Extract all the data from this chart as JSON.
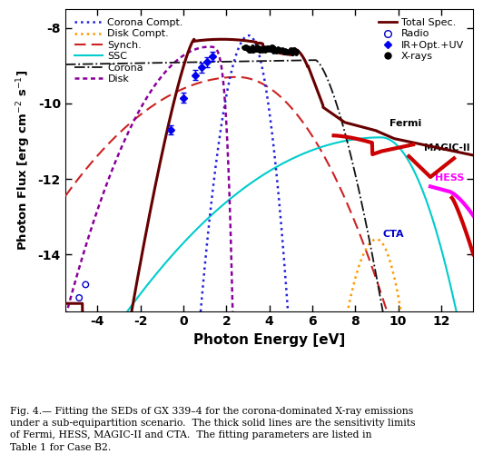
{
  "xlabel": "Photon Energy [eV]",
  "ylabel": "Photon Flux [erg cm$^{-2}$ s$^{-1}$]",
  "xlim": [
    -5.5,
    13.5
  ],
  "ylim": [
    -15.5,
    -7.5
  ],
  "xticks": [
    -4,
    -2,
    0,
    2,
    4,
    6,
    8,
    10,
    12
  ],
  "yticks": [
    -8,
    -10,
    -12,
    -14
  ],
  "caption": "Fig. 4.— Fitting the SEDs of GX 339–4 for the corona-dominated X-ray emissions\nunder a sub-equipartition scenario.  The thick solid lines are the sensitivity limits\nof Fermi, HESS, MAGIC-II and CTA.  The fitting parameters are listed in\nTable 1 for Case B2.",
  "bg_color": "#ffffff",
  "col_corona_compt": "#2222dd",
  "col_disk_compt": "#ff9900",
  "col_synch": "#cc2222",
  "col_ssc": "#00cccc",
  "col_corona": "#111111",
  "col_disk": "#880099",
  "col_total": "#660000",
  "col_fermi": "#cc0000",
  "col_magic": "#cc0000",
  "col_hess": "#ff00ff",
  "col_cta": "#0000cc",
  "col_radio_edge": "#0000cc",
  "col_ir": "#0000ee"
}
